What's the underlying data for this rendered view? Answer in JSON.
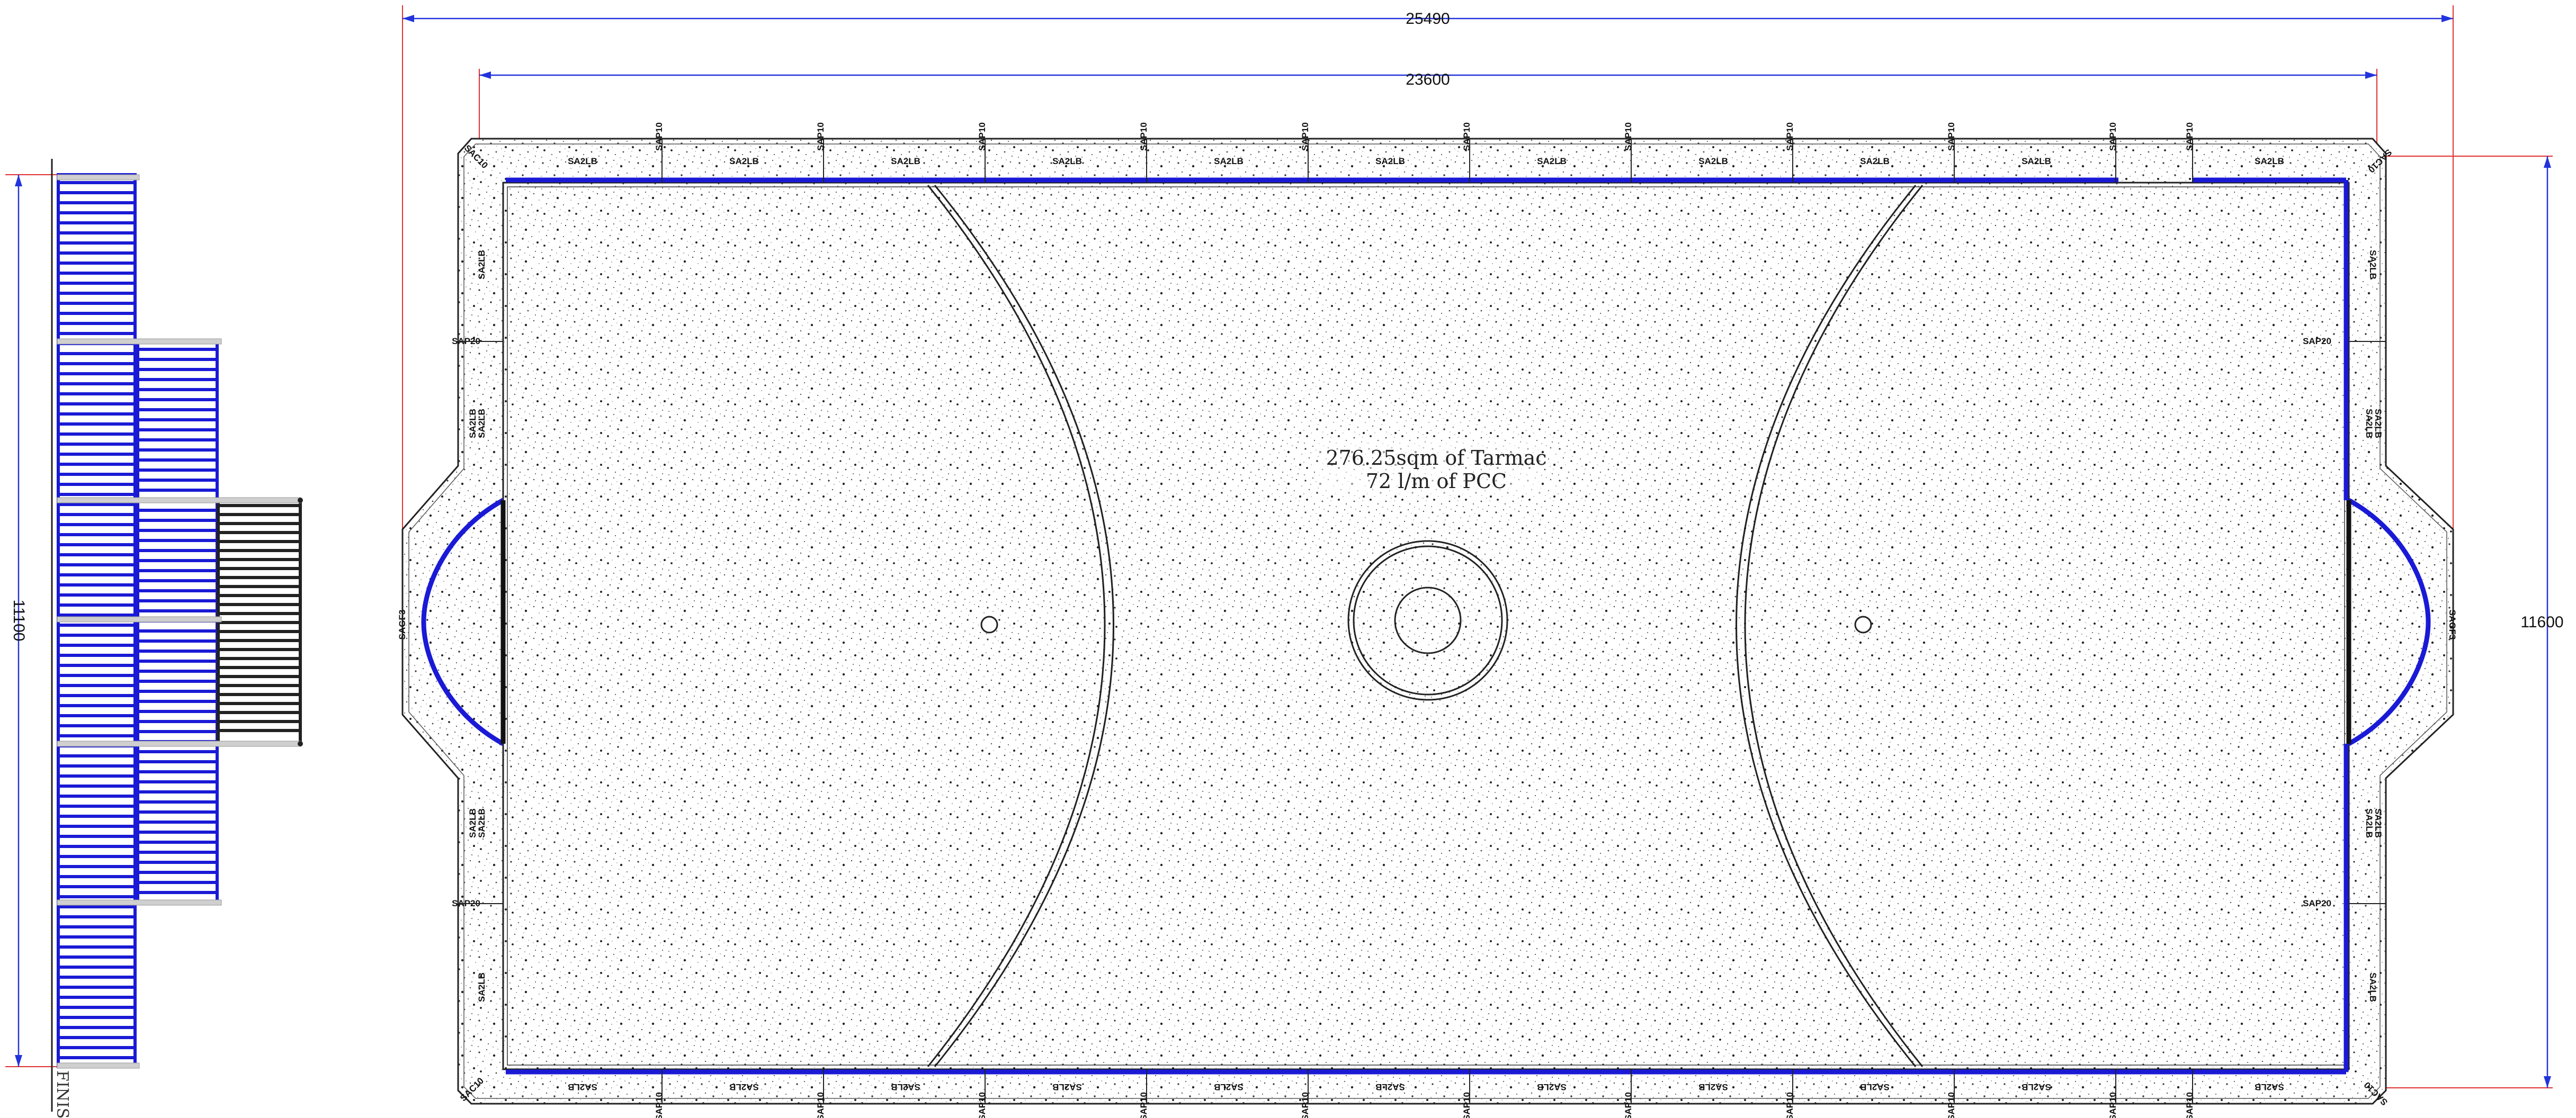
{
  "drawing": {
    "dimensions": {
      "overall_width": "25490",
      "inner_width": "23600",
      "overall_height": "11600",
      "elevation_height": "11100"
    },
    "center_note": {
      "line1": "276.25sqm of Tarmac",
      "line2": "72 l/m of PCC"
    },
    "elevation_label": "FINIS",
    "panel_labels": {
      "a2lb": "SA2LB",
      "p10": "SAP10",
      "p20": "SAP20",
      "gf3": "SAGF3",
      "c10": "SAC10"
    },
    "colors": {
      "panel_line": "#1a1ad6",
      "dimension_line": "#2233dd",
      "extension_line": "#e03030",
      "outline": "#222222",
      "elevation_dark": "#222222"
    }
  }
}
